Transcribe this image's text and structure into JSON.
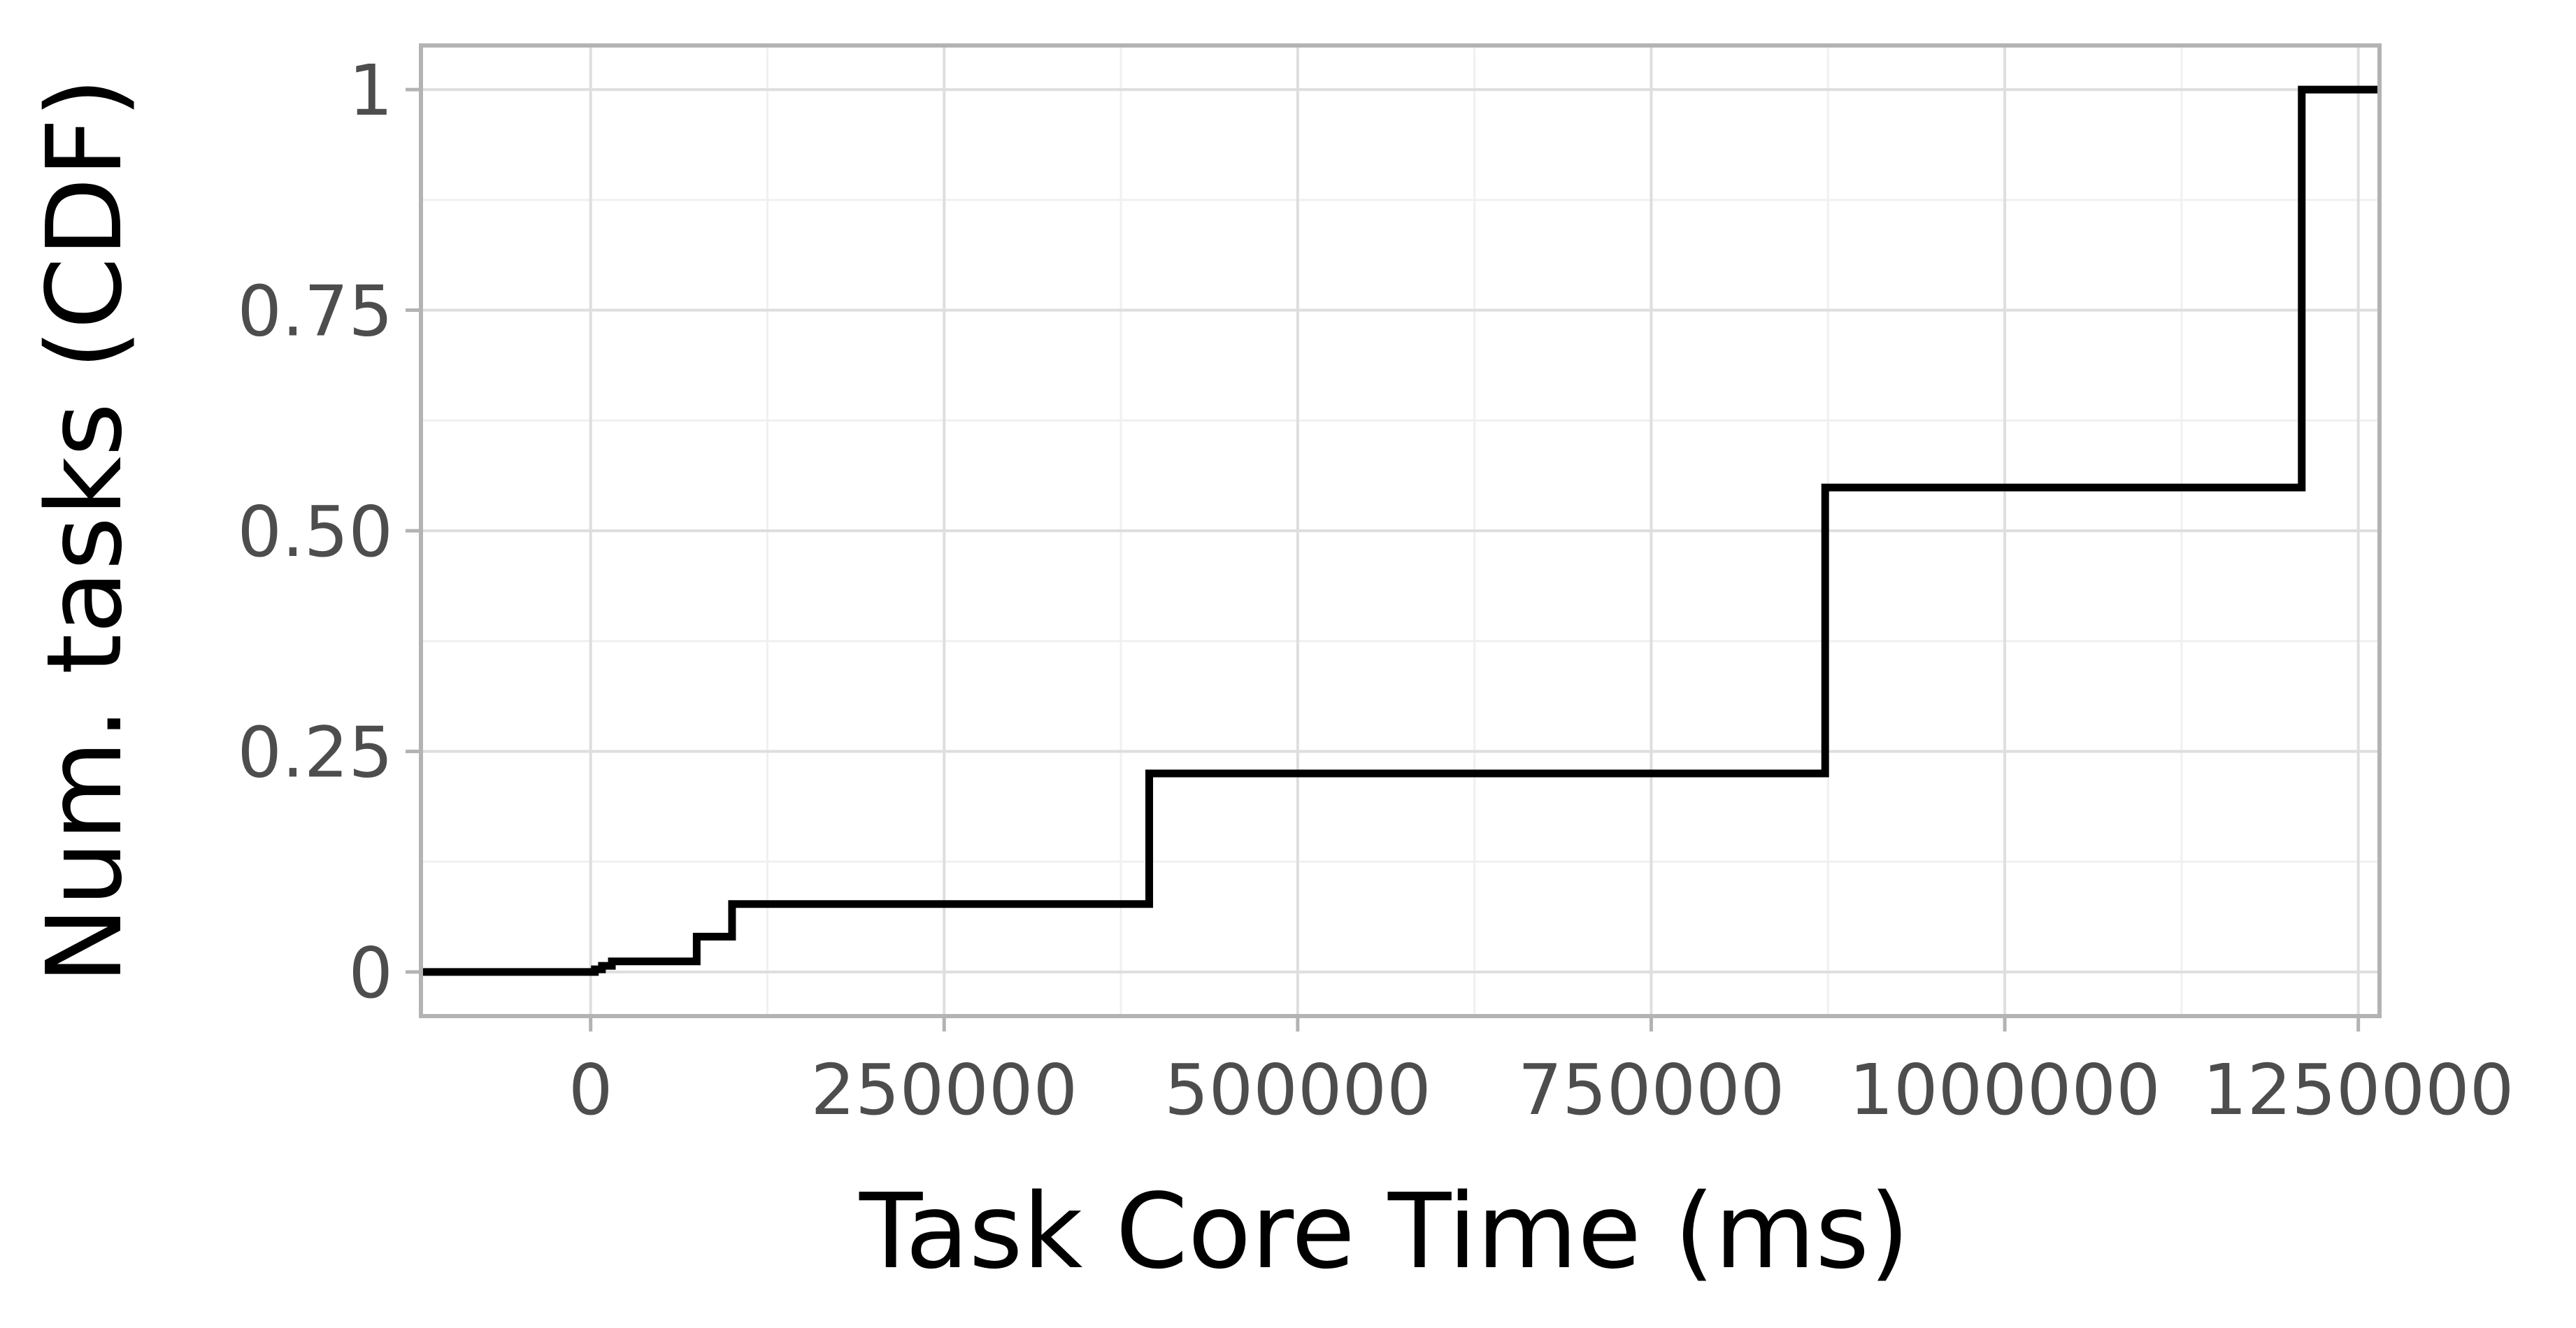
{
  "chart_data": {
    "type": "line",
    "step": true,
    "title": "",
    "xlabel": "Task Core Time (ms)",
    "ylabel": "Num. tasks (CDF)",
    "xlim": [
      -120000,
      1265000
    ],
    "ylim": [
      -0.05,
      1.05
    ],
    "x_ticks": [
      0,
      250000,
      500000,
      750000,
      1000000,
      1250000
    ],
    "x_tick_labels": [
      "0",
      "250000",
      "500000",
      "750000",
      "1000000",
      "1250000"
    ],
    "y_ticks": [
      0,
      0.25,
      0.5,
      0.75,
      1
    ],
    "y_tick_labels": [
      "0",
      "0.25",
      "0.50",
      "0.75",
      "1"
    ],
    "grid": true,
    "legend": "none",
    "series": [
      {
        "color": "#000000",
        "x": [
          -120000,
          3000,
          8000,
          15000,
          75000,
          100000,
          395000,
          873000,
          1210000,
          1265000
        ],
        "y": [
          0,
          0.003,
          0.007,
          0.012,
          0.04,
          0.077,
          0.225,
          0.549,
          1.0,
          1.0
        ]
      }
    ]
  }
}
